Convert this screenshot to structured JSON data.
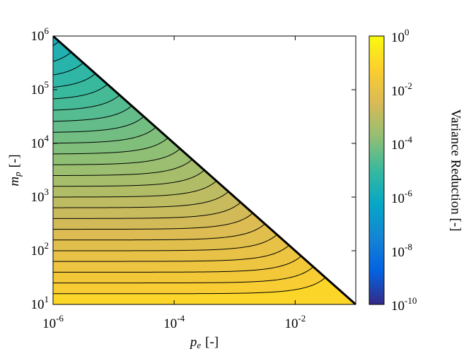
{
  "chart_data": {
    "type": "contourf",
    "xlabel": {
      "symbol": "p",
      "subscript": "e",
      "unit": "[-]"
    },
    "ylabel": {
      "symbol": "m",
      "subscript": "p",
      "unit": "[-]"
    },
    "colorbar_label": "Variance Reduction [-]",
    "log_x": true,
    "log_y": true,
    "log_c": true,
    "xlim": [
      1e-06,
      0.1
    ],
    "ylim": [
      10,
      1000000
    ],
    "clim": [
      1e-10,
      1
    ],
    "xticks": [
      {
        "value": 1e-06,
        "label": "10",
        "exponent": "-6"
      },
      {
        "value": 0.0001,
        "label": "10",
        "exponent": "-4"
      },
      {
        "value": 0.01,
        "label": "10",
        "exponent": "-2"
      }
    ],
    "yticks": [
      {
        "value": 10,
        "label": "10",
        "exponent": "1"
      },
      {
        "value": 100,
        "label": "10",
        "exponent": "2"
      },
      {
        "value": 1000,
        "label": "10",
        "exponent": "3"
      },
      {
        "value": 10000,
        "label": "10",
        "exponent": "4"
      },
      {
        "value": 100000,
        "label": "10",
        "exponent": "5"
      },
      {
        "value": 1000000,
        "label": "10",
        "exponent": "6"
      }
    ],
    "cticks": [
      {
        "value": 1,
        "label": "10",
        "exponent": "0"
      },
      {
        "value": 0.01,
        "label": "10",
        "exponent": "-2"
      },
      {
        "value": 0.0001,
        "label": "10",
        "exponent": "-4"
      },
      {
        "value": 1e-06,
        "label": "10",
        "exponent": "-6"
      },
      {
        "value": 1e-08,
        "label": "10",
        "exponent": "-8"
      },
      {
        "value": 1e-10,
        "label": "10",
        "exponent": "-10"
      }
    ],
    "levels": [
      0.0631,
      0.0398,
      0.0251,
      0.0158,
      0.01,
      0.00631,
      0.00398,
      0.00251,
      0.00158,
      0.001,
      0.000631,
      0.000398,
      0.000251,
      0.000158,
      0.0001,
      6.31e-05,
      3.98e-05,
      2.51e-05,
      1.58e-05,
      1e-05,
      6.31e-06,
      3.98e-06,
      2.51e-06,
      1.58e-06,
      1e-06
    ],
    "colormap": [
      "#352a87",
      "#0363e1",
      "#1485d4",
      "#06a7c6",
      "#38b99e",
      "#92bf73",
      "#d9ba56",
      "#fcce2e",
      "#f9fb0e"
    ],
    "line_color": "#000000"
  }
}
